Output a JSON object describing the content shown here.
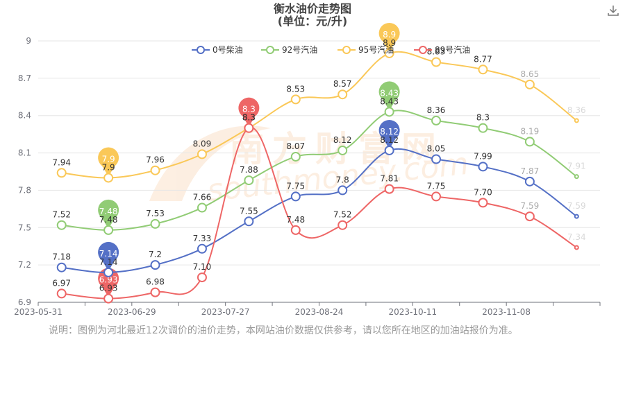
{
  "title": "衡水油价走势图",
  "subtitle": "(单位：元/升)",
  "watermark": "南方财富网 southmoney.com",
  "footnote": "说明：图例为河北最近12次调价的油价走势，本网站油价数据仅供参考，请以您所在地区的加油站报价为准。",
  "toolbar": {
    "download_icon": "download-icon"
  },
  "chart_data": {
    "type": "line",
    "smooth": true,
    "title": "衡水油价走势图",
    "subtitle": "(单位：元/升)",
    "x_labels": [
      "2023-05-31",
      "2023-06-29",
      "2023-07-27",
      "2023-08-24",
      "2023-10-11",
      "2023-11-08"
    ],
    "ylim": [
      6.9,
      9
    ],
    "yticks": [
      6.9,
      7.2,
      7.5,
      7.8,
      8.1,
      8.4,
      8.7,
      9
    ],
    "grid": true,
    "legend_position": "top-center",
    "series": [
      {
        "name": "0号柴油",
        "color": "#5470c6",
        "values": [
          7.18,
          7.14,
          7.2,
          7.33,
          7.55,
          7.75,
          7.8,
          8.12,
          8.05,
          7.99,
          7.87,
          7.59
        ],
        "labels": [
          "7.18",
          "7.14",
          "7.2",
          "7.33",
          "7.55",
          "7.75",
          "7.8",
          "8.12",
          "8.05",
          "7.99",
          "7.87",
          "7.59"
        ],
        "min_pin": "7.14",
        "max_pin": "8.12"
      },
      {
        "name": "92号汽油",
        "color": "#91cc75",
        "values": [
          7.52,
          7.48,
          7.53,
          7.66,
          7.88,
          8.07,
          8.12,
          8.43,
          8.36,
          8.3,
          8.19,
          7.91
        ],
        "labels": [
          "7.52",
          "7.48",
          "7.53",
          "7.66",
          "7.88",
          "8.07",
          "8.12",
          "8.43",
          "8.36",
          "8.3",
          "8.19",
          "7.91"
        ],
        "min_pin": "7.48",
        "max_pin": "8.43"
      },
      {
        "name": "95号汽油",
        "color": "#fac858",
        "values": [
          7.94,
          7.9,
          7.96,
          8.09,
          8.3,
          8.53,
          8.57,
          8.9,
          8.83,
          8.77,
          8.65,
          8.36
        ],
        "labels": [
          "7.94",
          "7.9",
          "7.96",
          "8.09",
          "8.3",
          "8.53",
          "8.57",
          "8.9",
          "8.83",
          "8.77",
          "8.65",
          "8.36"
        ],
        "min_pin": "7.9",
        "max_pin": "8.9"
      },
      {
        "name": "89号汽油",
        "color": "#ee6666",
        "values": [
          6.97,
          6.93,
          6.98,
          7.1,
          8.3,
          7.48,
          7.52,
          7.81,
          7.75,
          7.7,
          7.59,
          7.34
        ],
        "labels": [
          "6.97",
          "6.93",
          "6.98",
          "7.10",
          "8.3",
          "7.48",
          "7.52",
          "7.81",
          "7.75",
          "7.70",
          "7.59",
          "7.34"
        ],
        "min_pin": "6.93",
        "max_pin": "8.3"
      }
    ]
  }
}
